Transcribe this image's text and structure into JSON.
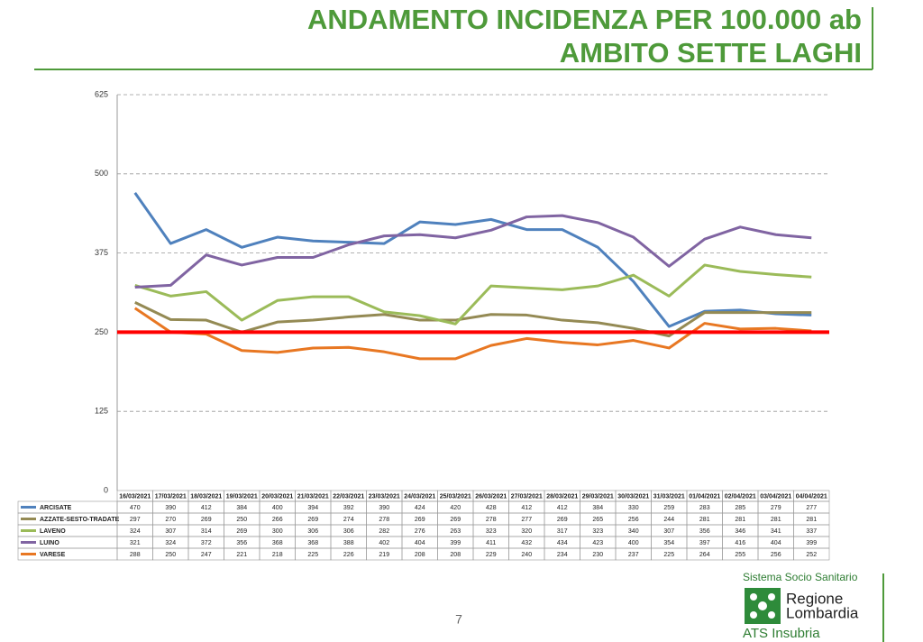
{
  "chart_data": {
    "type": "line",
    "title": "ANDAMENTO INCIDENZA PER 100.000 ab",
    "subtitle": "AMBITO SETTE LAGHI",
    "categories": [
      "16/03/2021",
      "17/03/2021",
      "18/03/2021",
      "19/03/2021",
      "20/03/2021",
      "21/03/2021",
      "22/03/2021",
      "23/03/2021",
      "24/03/2021",
      "25/03/2021",
      "26/03/2021",
      "27/03/2021",
      "28/03/2021",
      "29/03/2021",
      "30/03/2021",
      "31/03/2021",
      "01/04/2021",
      "02/04/2021",
      "03/04/2021",
      "04/04/2021"
    ],
    "series": [
      {
        "name": "ARCISATE",
        "color": "#4f81bd",
        "values": [
          470,
          390,
          412,
          384,
          400,
          394,
          392,
          390,
          424,
          420,
          428,
          412,
          412,
          384,
          330,
          259,
          283,
          285,
          279,
          277
        ]
      },
      {
        "name": "AZZATE-SESTO-TRADATE",
        "color": "#948a54",
        "values": [
          297,
          270,
          269,
          250,
          266,
          269,
          274,
          278,
          269,
          269,
          278,
          277,
          269,
          265,
          256,
          244,
          281,
          281,
          281,
          281
        ]
      },
      {
        "name": "LAVENO",
        "color": "#9bbb59",
        "values": [
          324,
          307,
          314,
          269,
          300,
          306,
          306,
          282,
          276,
          263,
          323,
          320,
          317,
          323,
          340,
          307,
          356,
          346,
          341,
          337
        ]
      },
      {
        "name": "LUINO",
        "color": "#8064a2",
        "values": [
          321,
          324,
          372,
          356,
          368,
          368,
          388,
          402,
          404,
          399,
          411,
          432,
          434,
          423,
          400,
          354,
          397,
          416,
          404,
          399
        ]
      },
      {
        "name": "VARESE",
        "color": "#e87722",
        "values": [
          288,
          250,
          247,
          221,
          218,
          225,
          226,
          219,
          208,
          208,
          229,
          240,
          234,
          230,
          237,
          225,
          264,
          255,
          256,
          252
        ]
      }
    ],
    "ylim": [
      0,
      625
    ],
    "yticks": [
      0,
      125,
      250,
      375,
      500,
      625
    ],
    "grid": true,
    "reference_line": {
      "value": 250,
      "color": "#ff0000"
    }
  },
  "page_number": "7",
  "logo": {
    "system": "Sistema Socio Sanitario",
    "region_line1": "Regione",
    "region_line2": "Lombardia",
    "agency": "ATS Insubria"
  }
}
